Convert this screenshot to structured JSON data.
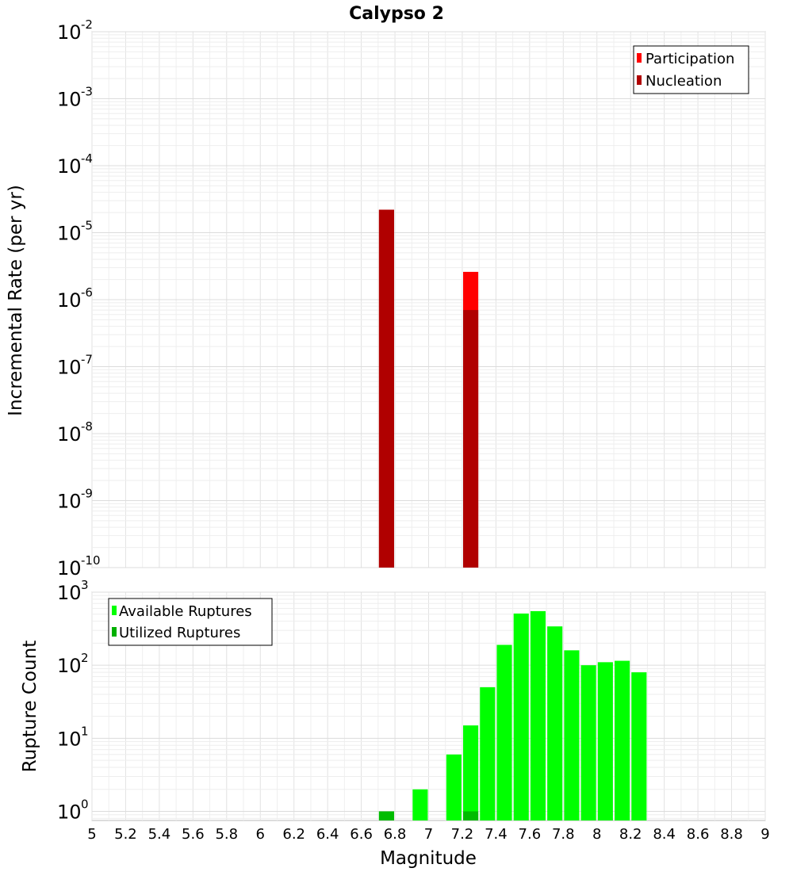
{
  "chart_data": [
    {
      "type": "bar",
      "title": "Calypso 2",
      "ylabel": "Incremental Rate (per yr)",
      "xlabel": "",
      "xlim": [
        5,
        9
      ],
      "ylim": [
        1e-10,
        0.01
      ],
      "yscale": "log",
      "yticks": [
        {
          "base": "10",
          "exp": "-2"
        },
        {
          "base": "10",
          "exp": "-3"
        },
        {
          "base": "10",
          "exp": "-4"
        },
        {
          "base": "10",
          "exp": "-5"
        },
        {
          "base": "10",
          "exp": "-6"
        },
        {
          "base": "10",
          "exp": "-7"
        },
        {
          "base": "10",
          "exp": "-8"
        },
        {
          "base": "10",
          "exp": "-9"
        },
        {
          "base": "10",
          "exp": "-10"
        }
      ],
      "grid": true,
      "legend": "top-right",
      "bar_width": 0.09,
      "series": [
        {
          "name": "Participation",
          "color": "#ff0000",
          "x": [
            6.75,
            7.25
          ],
          "values": [
            2.2e-05,
            2.6e-06
          ]
        },
        {
          "name": "Nucleation",
          "color": "#b00000",
          "x": [
            6.75,
            7.25
          ],
          "values": [
            2.2e-05,
            7e-07
          ]
        }
      ]
    },
    {
      "type": "bar",
      "title": "",
      "ylabel": "Rupture Count",
      "xlabel": "Magnitude",
      "xlim": [
        5,
        9
      ],
      "ylim": [
        0.75,
        1000
      ],
      "yscale": "log",
      "yticks": [
        {
          "base": "10",
          "exp": "3"
        },
        {
          "base": "10",
          "exp": "2"
        },
        {
          "base": "10",
          "exp": "1"
        },
        {
          "base": "10",
          "exp": "0"
        }
      ],
      "xticks": [
        "5",
        "5.2",
        "5.4",
        "5.6",
        "5.8",
        "6",
        "6.2",
        "6.4",
        "6.6",
        "6.8",
        "7",
        "7.2",
        "7.4",
        "7.6",
        "7.8",
        "8",
        "8.2",
        "8.4",
        "8.6",
        "8.8",
        "9"
      ],
      "grid": true,
      "legend": "top-left",
      "bar_width": 0.09,
      "series": [
        {
          "name": "Available Ruptures",
          "color": "#00ff00",
          "x": [
            6.75,
            6.95,
            7.15,
            7.25,
            7.35,
            7.45,
            7.55,
            7.65,
            7.75,
            7.85,
            7.95,
            8.05,
            8.15,
            8.25
          ],
          "values": [
            1,
            2,
            6,
            15,
            50,
            190,
            510,
            550,
            340,
            160,
            100,
            110,
            115,
            80
          ]
        },
        {
          "name": "Utilized Ruptures",
          "color": "#00b000",
          "x": [
            6.75,
            7.25
          ],
          "values": [
            1,
            1
          ]
        }
      ]
    }
  ]
}
